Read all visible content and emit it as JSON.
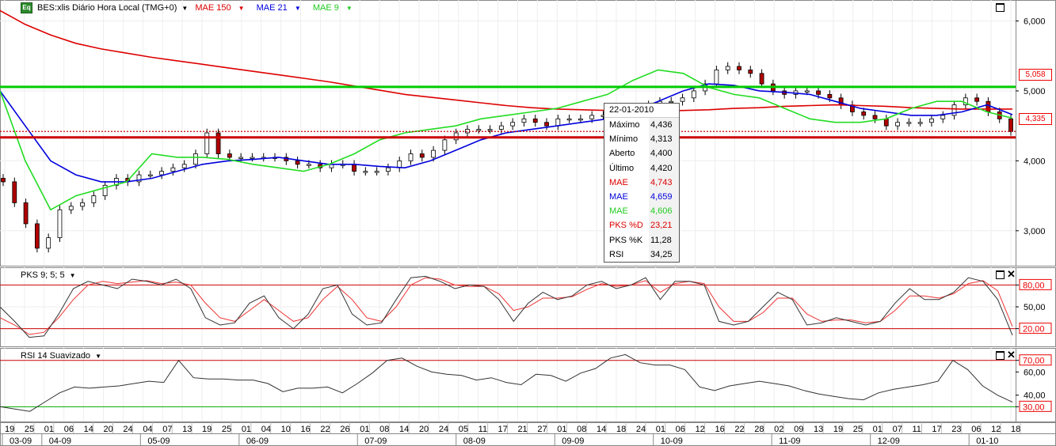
{
  "header": {
    "symbol": "BES:xlis Diário Hora Local (TMG+0)",
    "logo": "Eq",
    "ma150_label": "MAE 150",
    "ma21_label": "MAE 21",
    "ma9_label": "MAE 9"
  },
  "panels": {
    "stoch_label": "PKS 9; 5; 5",
    "rsi_label": "RSI 14 Suavizado"
  },
  "colors": {
    "ma150": "#dd0000",
    "ma21": "#0000dd",
    "ma9": "#22dd22",
    "stoch_k": "#333333",
    "stoch_d": "#ee3333",
    "band": "#cc0000",
    "green_level": "#00cc00"
  },
  "price_tags": {
    "green": "5,058",
    "red": "4,335"
  },
  "tooltip": {
    "date": "22-01-2010",
    "rows": [
      {
        "label": "Máximo",
        "value": "4,436",
        "color": "#000000"
      },
      {
        "label": "Mínimo",
        "value": "4,313",
        "color": "#000000"
      },
      {
        "label": "Aberto",
        "value": "4,400",
        "color": "#000000"
      },
      {
        "label": "Último",
        "value": "4,420",
        "color": "#000000"
      },
      {
        "label": "MAE",
        "value": "4,743",
        "color": "#dd0000"
      },
      {
        "label": "MAE",
        "value": "4,659",
        "color": "#0000dd"
      },
      {
        "label": "MAE",
        "value": "4,606",
        "color": "#22cc22"
      },
      {
        "label": "PKS %D",
        "value": "23,21",
        "color": "#dd0000"
      },
      {
        "label": "PKS %K",
        "value": "11,28",
        "color": "#000000"
      },
      {
        "label": "RSI",
        "value": "34,25",
        "color": "#000000"
      }
    ]
  },
  "chart_data": [
    {
      "type": "candlestick",
      "panel": "price",
      "y_ticks": [
        "6,000",
        "5,000",
        "4,000",
        "3,000"
      ],
      "ylim": [
        2.5,
        6.3
      ],
      "level_lines": [
        {
          "value": 5.058,
          "label": "5,058",
          "color": "#00cc00"
        },
        {
          "value": 4.335,
          "label": "4,335",
          "color": "#cc0000"
        }
      ],
      "close_series": [
        3.7,
        3.4,
        3.1,
        2.75,
        2.9,
        3.3,
        3.35,
        3.4,
        3.5,
        3.65,
        3.75,
        3.7,
        3.8,
        3.8,
        3.85,
        3.9,
        3.95,
        4.1,
        4.4,
        4.1,
        4.05,
        4.05,
        4.05,
        4.05,
        4.05,
        4.0,
        3.95,
        3.95,
        3.9,
        3.95,
        3.95,
        3.85,
        3.85,
        3.85,
        3.9,
        4.0,
        4.1,
        4.05,
        4.15,
        4.3,
        4.4,
        4.45,
        4.45,
        4.45,
        4.5,
        4.55,
        4.6,
        4.55,
        4.5,
        4.6,
        4.6,
        4.6,
        4.65,
        4.65,
        4.7,
        4.75,
        4.75,
        4.8,
        4.85,
        4.85,
        4.9,
        5.0,
        5.1,
        5.3,
        5.35,
        5.3,
        5.25,
        5.1,
        5.0,
        4.95,
        5.0,
        5.0,
        4.95,
        4.9,
        4.8,
        4.7,
        4.65,
        4.6,
        4.5,
        4.55,
        4.55,
        4.55,
        4.6,
        4.65,
        4.8,
        4.9,
        4.85,
        4.7,
        4.6,
        4.42
      ],
      "ma150_series": [
        6.15,
        5.95,
        5.8,
        5.68,
        5.6,
        5.54,
        5.48,
        5.43,
        5.38,
        5.33,
        5.28,
        5.23,
        5.18,
        5.13,
        5.07,
        5.01,
        4.95,
        4.91,
        4.87,
        4.83,
        4.79,
        4.76,
        4.74,
        4.73,
        4.72,
        4.71,
        4.71,
        4.72,
        4.73,
        4.75,
        4.76,
        4.78,
        4.79,
        4.8,
        4.79,
        4.78,
        4.76,
        4.75,
        4.74,
        4.74,
        4.74
      ],
      "ma21_series": [
        5.0,
        4.5,
        4.0,
        3.8,
        3.7,
        3.7,
        3.75,
        3.85,
        3.95,
        4.0,
        4.02,
        4.05,
        4.0,
        3.95,
        3.95,
        3.92,
        3.9,
        4.0,
        4.15,
        4.3,
        4.4,
        4.45,
        4.5,
        4.55,
        4.6,
        4.7,
        4.85,
        5.0,
        5.1,
        5.08,
        5.0,
        4.98,
        4.95,
        4.85,
        4.75,
        4.7,
        4.65,
        4.65,
        4.7,
        4.8,
        4.66
      ],
      "ma9_series": [
        5.0,
        4.0,
        3.3,
        3.5,
        3.6,
        3.7,
        4.1,
        4.05,
        4.05,
        4.02,
        3.95,
        3.9,
        3.85,
        3.95,
        4.1,
        4.3,
        4.4,
        4.45,
        4.5,
        4.6,
        4.65,
        4.7,
        4.75,
        4.85,
        4.95,
        5.15,
        5.3,
        5.25,
        5.05,
        4.95,
        4.9,
        4.75,
        4.6,
        4.55,
        4.55,
        4.6,
        4.75,
        4.85,
        4.85,
        4.7,
        4.61
      ]
    },
    {
      "type": "line",
      "panel": "stochastic",
      "y_ticks": [
        "80,00",
        "50,00",
        "20,00"
      ],
      "ylim": [
        0,
        100
      ],
      "reference_lines": [
        80,
        20
      ],
      "series": [
        {
          "name": "PKS %K",
          "color": "#333333",
          "values": [
            50,
            30,
            8,
            10,
            40,
            75,
            85,
            80,
            75,
            88,
            85,
            80,
            88,
            75,
            35,
            25,
            28,
            55,
            65,
            35,
            20,
            40,
            75,
            80,
            40,
            25,
            28,
            60,
            90,
            92,
            85,
            75,
            80,
            78,
            60,
            30,
            55,
            70,
            60,
            65,
            80,
            85,
            75,
            80,
            90,
            60,
            85,
            85,
            80,
            30,
            25,
            30,
            50,
            70,
            60,
            25,
            28,
            35,
            30,
            25,
            30,
            55,
            75,
            60,
            60,
            70,
            90,
            85,
            60,
            11
          ]
        },
        {
          "name": "PKS %D",
          "color": "#ee3333",
          "values": [
            35,
            25,
            12,
            15,
            35,
            60,
            80,
            85,
            82,
            84,
            86,
            82,
            84,
            80,
            55,
            35,
            30,
            45,
            60,
            45,
            30,
            35,
            60,
            78,
            60,
            35,
            30,
            50,
            80,
            90,
            88,
            80,
            78,
            78,
            68,
            45,
            50,
            62,
            62,
            64,
            74,
            82,
            78,
            80,
            86,
            70,
            82,
            85,
            82,
            50,
            30,
            30,
            42,
            62,
            62,
            40,
            30,
            32,
            32,
            28,
            30,
            45,
            65,
            65,
            62,
            68,
            82,
            86,
            72,
            23
          ]
        }
      ]
    },
    {
      "type": "line",
      "panel": "rsi",
      "y_ticks": [
        "70,00",
        "60,00",
        "40,00",
        "30,00"
      ],
      "ylim": [
        20,
        78
      ],
      "reference_lines": [
        70,
        30
      ],
      "series": [
        {
          "name": "RSI",
          "color": "#333333",
          "values": [
            30,
            28,
            26,
            34,
            42,
            47,
            46,
            47,
            48,
            50,
            52,
            51,
            70,
            55,
            54,
            54,
            53,
            53,
            50,
            43,
            46,
            46,
            47,
            42,
            50,
            59,
            70,
            72,
            65,
            60,
            58,
            57,
            53,
            55,
            51,
            49,
            58,
            57,
            52,
            59,
            63,
            72,
            75,
            68,
            66,
            66,
            62,
            47,
            44,
            48,
            50,
            52,
            50,
            48,
            44,
            41,
            39,
            37,
            36,
            42,
            45,
            47,
            49,
            52,
            70,
            62,
            48,
            40,
            34
          ]
        }
      ]
    }
  ],
  "x_axis": {
    "day_ticks": [
      "19",
      "25",
      "01",
      "06",
      "14",
      "20",
      "24",
      "04",
      "07",
      "13",
      "19",
      "25",
      "01",
      "04",
      "10",
      "16",
      "22",
      "26",
      "01",
      "08",
      "14",
      "20",
      "24",
      "05",
      "11",
      "17",
      "21",
      "27",
      "01",
      "08",
      "14",
      "18",
      "24",
      "01",
      "06",
      "12",
      "16",
      "22",
      "28",
      "02",
      "09",
      "13",
      "19",
      "25",
      "01",
      "07",
      "11",
      "17",
      "23",
      "06",
      "12",
      "18"
    ],
    "month_labels": [
      "03-09",
      "04-09",
      "05-09",
      "06-09",
      "07-09",
      "08-09",
      "09-09",
      "10-09",
      "11-09",
      "12-09",
      "01-10"
    ]
  }
}
